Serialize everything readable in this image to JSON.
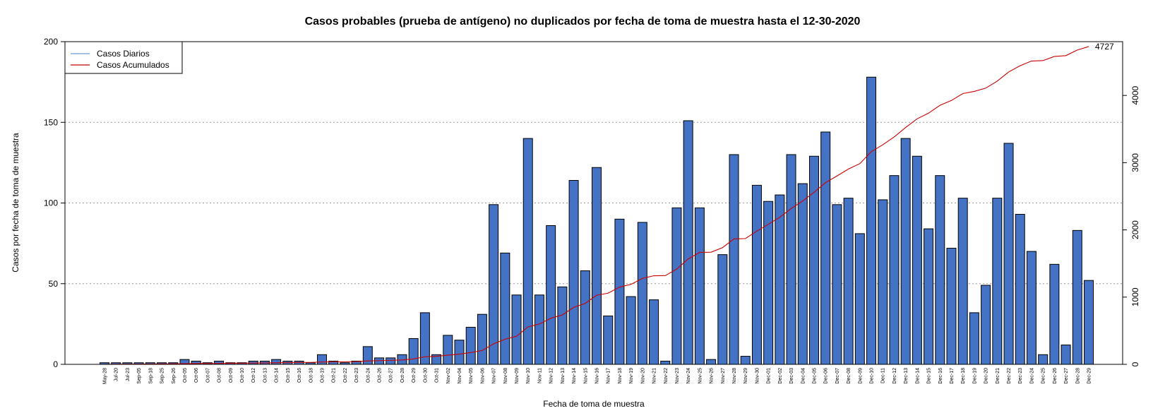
{
  "chart_data": {
    "type": "bar",
    "title": "Casos probables (prueba de antígeno) no duplicados por fecha de toma de muestra hasta el 12-30-2020",
    "xlabel": "Fecha de toma de muestra",
    "ylabel": "Casos por fecha de toma de muestra",
    "ylim": [
      0,
      200
    ],
    "y2lim": [
      0,
      4800
    ],
    "y_ticks": [
      "0",
      "50",
      "100",
      "150",
      "200"
    ],
    "y2_ticks": [
      "0",
      "1000",
      "2000",
      "3000",
      "4000"
    ],
    "grid": "horizontal dotted",
    "legend_position": "top-left",
    "end_label": "4727",
    "colors": {
      "bars": "#4472C4",
      "daily": "#6F9BD8",
      "cumulative": "#CC0000"
    },
    "categories": [
      "May-28",
      "Jul-20",
      "Jul-23",
      "Sep-05",
      "Sep-18",
      "Sep-25",
      "Sep-26",
      "Oct-05",
      "Oct-06",
      "Oct-07",
      "Oct-08",
      "Oct-09",
      "Oct-10",
      "Oct-12",
      "Oct-13",
      "Oct-14",
      "Oct-15",
      "Oct-16",
      "Oct-18",
      "Oct-19",
      "Oct-21",
      "Oct-22",
      "Oct-23",
      "Oct-24",
      "Oct-26",
      "Oct-27",
      "Oct-28",
      "Oct-29",
      "Oct-30",
      "Oct-31",
      "Nov-02",
      "Nov-04",
      "Nov-05",
      "Nov-06",
      "Nov-07",
      "Nov-08",
      "Nov-09",
      "Nov-10",
      "Nov-11",
      "Nov-12",
      "Nov-13",
      "Nov-14",
      "Nov-15",
      "Nov-16",
      "Nov-17",
      "Nov-18",
      "Nov-19",
      "Nov-20",
      "Nov-21",
      "Nov-22",
      "Nov-23",
      "Nov-24",
      "Nov-25",
      "Nov-26",
      "Nov-27",
      "Nov-28",
      "Nov-29",
      "Nov-30",
      "Dec-01",
      "Dec-02",
      "Dec-03",
      "Dec-04",
      "Dec-05",
      "Dec-06",
      "Dec-07",
      "Dec-08",
      "Dec-09",
      "Dec-10",
      "Dec-11",
      "Dec-12",
      "Dec-13",
      "Dec-14",
      "Dec-15",
      "Dec-16",
      "Dec-17",
      "Dec-18",
      "Dec-19",
      "Dec-20",
      "Dec-21",
      "Dec-22",
      "Dec-23",
      "Dec-24",
      "Dec-25",
      "Dec-26",
      "Dec-27",
      "Dec-28",
      "Dec-29"
    ],
    "series": [
      {
        "name": "Casos Diarios",
        "values": [
          1,
          1,
          1,
          1,
          1,
          1,
          1,
          3,
          2,
          1,
          2,
          1,
          1,
          2,
          2,
          3,
          2,
          2,
          1,
          6,
          2,
          1,
          2,
          11,
          4,
          4,
          6,
          16,
          32,
          6,
          18,
          15,
          23,
          31,
          99,
          69,
          43,
          140,
          43,
          86,
          48,
          114,
          58,
          122,
          30,
          90,
          42,
          88,
          40,
          2,
          97,
          151,
          97,
          3,
          68,
          130,
          5,
          111,
          101,
          105,
          130,
          112,
          129,
          144,
          99,
          103,
          81,
          178,
          102,
          117,
          140,
          129,
          84,
          117,
          72,
          103,
          32,
          49,
          103,
          137,
          93,
          70,
          6,
          62,
          12,
          83,
          52
        ]
      },
      {
        "name": "Casos Acumulados",
        "values": [
          1,
          2,
          3,
          4,
          5,
          6,
          7,
          10,
          12,
          13,
          15,
          16,
          17,
          19,
          21,
          24,
          26,
          28,
          29,
          35,
          37,
          38,
          40,
          51,
          55,
          59,
          65,
          81,
          113,
          119,
          137,
          152,
          175,
          206,
          305,
          374,
          417,
          557,
          600,
          686,
          734,
          848,
          906,
          1028,
          1058,
          1148,
          1190,
          1278,
          1318,
          1320,
          1417,
          1568,
          1665,
          1668,
          1736,
          1866,
          1871,
          1982,
          2083,
          2188,
          2318,
          2430,
          2559,
          2703,
          2802,
          2905,
          2986,
          3164,
          3266,
          3383,
          3523,
          3652,
          3736,
          3853,
          3925,
          4028,
          4060,
          4109,
          4212,
          4349,
          4442,
          4512,
          4518,
          4580,
          4592,
          4675,
          4727
        ]
      }
    ]
  }
}
